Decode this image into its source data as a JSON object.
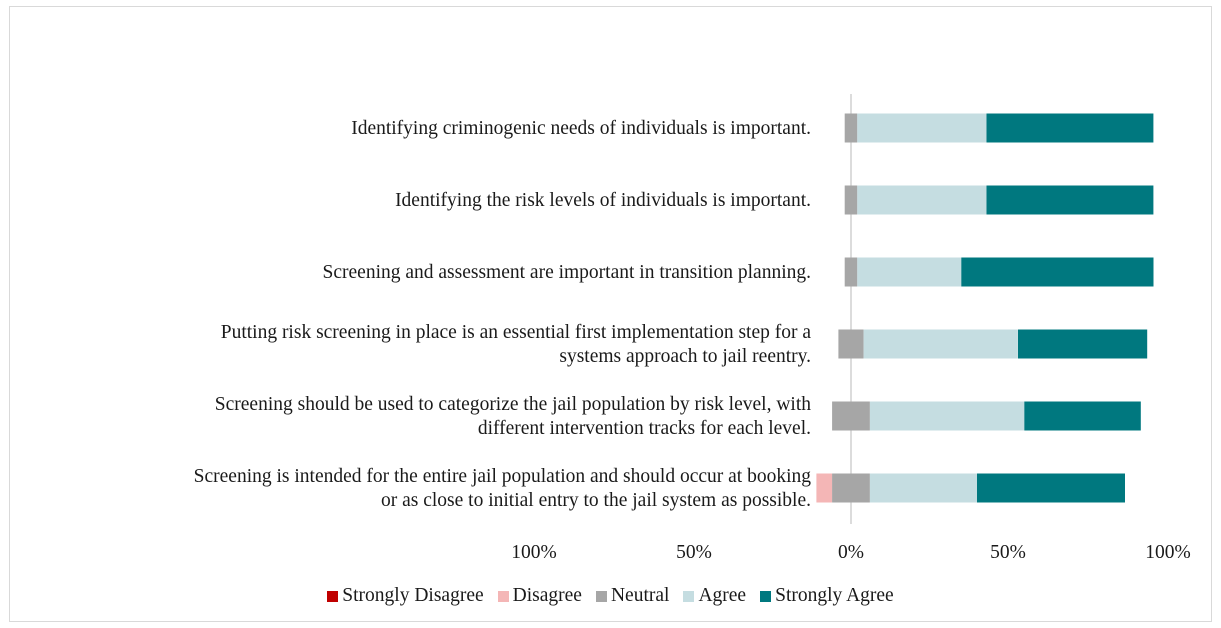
{
  "chart_data": {
    "type": "bar",
    "orientation": "horizontal",
    "stacked": "diverging",
    "categories": [
      "Identifying criminogenic needs of individuals is important.",
      "Identifying the risk levels of individuals is important.",
      "Screening and assessment are important in transition planning.",
      "Putting risk screening in place is an essential first implementation step for a systems approach to jail reentry.",
      "Screening should be used to categorize the jail population by risk level, with different intervention tracks for each level.",
      "Screening is intended for the entire jail population and should occur at booking or as close to initial entry to the jail system as possible."
    ],
    "category_lines": [
      [
        "Identifying criminogenic needs of individuals is important."
      ],
      [
        "Identifying the risk levels of individuals is important."
      ],
      [
        "Screening and assessment are important in transition planning."
      ],
      [
        "Putting risk screening in place is an essential first implementation step for a",
        "systems approach to jail reentry."
      ],
      [
        "Screening should be used to categorize the jail population by risk level, with",
        "different intervention tracks for each level."
      ],
      [
        "Screening is intended for the entire jail population and should occur at booking",
        "or as close to initial entry to the jail system as possible."
      ]
    ],
    "series": [
      {
        "name": "Strongly Disagree",
        "color": "#c00000",
        "values": [
          0,
          0,
          0,
          0,
          0,
          0
        ]
      },
      {
        "name": "Disagree",
        "color": "#f4b6b6",
        "values": [
          0,
          0,
          0,
          0,
          0,
          5
        ]
      },
      {
        "name": "Neutral",
        "color": "#a6a6a6",
        "values": [
          4,
          4,
          4,
          8,
          12,
          12
        ]
      },
      {
        "name": "Agree",
        "color": "#c5dde1",
        "values": [
          41,
          41,
          33,
          49,
          49,
          34
        ]
      },
      {
        "name": "Strongly Agree",
        "color": "#00787f",
        "values": [
          53,
          53,
          61,
          41,
          37,
          47
        ]
      }
    ],
    "xlim": [
      -100,
      100
    ],
    "x_ticks": [
      "100%",
      "50%",
      "0%",
      "50%",
      "100%"
    ],
    "x_tick_values": [
      -100,
      -50,
      0,
      50,
      100
    ],
    "legend_position": "bottom",
    "grid": false
  }
}
